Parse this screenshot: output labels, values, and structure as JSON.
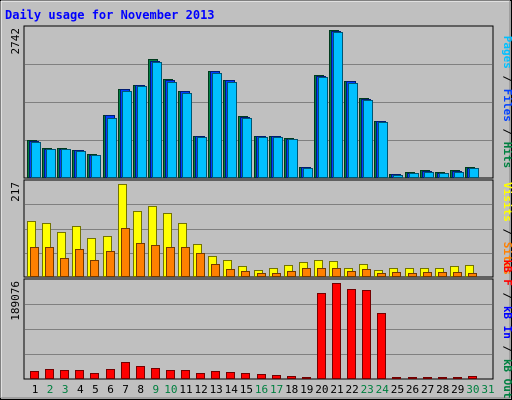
{
  "chart_data": [
    {
      "type": "bar",
      "title": "Daily usage for November 2013",
      "panel": "top",
      "ymax_label": "2742",
      "ylim": [
        0,
        2742
      ],
      "right_label_parts": [
        {
          "text": "Pages",
          "color": "#00C0FF"
        },
        {
          "text": " / ",
          "color": "#000000"
        },
        {
          "text": "Files",
          "color": "#0040FF"
        },
        {
          "text": " / ",
          "color": "#000000"
        },
        {
          "text": "Hits",
          "color": "#008040"
        }
      ],
      "categories": [
        "1",
        "2",
        "3",
        "4",
        "5",
        "6",
        "7",
        "8",
        "9",
        "10",
        "11",
        "12",
        "13",
        "14",
        "15",
        "16",
        "17",
        "18",
        "19",
        "20",
        "21",
        "22",
        "23",
        "24",
        "25",
        "26",
        "27",
        "28",
        "29",
        "30",
        "31"
      ],
      "series": [
        {
          "name": "Hits",
          "color": "#008040",
          "values": [
            700,
            550,
            550,
            520,
            440,
            1170,
            1650,
            1730,
            2210,
            1830,
            1620,
            780,
            1990,
            1820,
            1140,
            780,
            780,
            740,
            210,
            1900,
            2742,
            1800,
            1480,
            1060,
            70,
            110,
            140,
            110,
            140,
            200,
            null
          ]
        },
        {
          "name": "Files",
          "color": "#0040FF",
          "values": [
            690,
            540,
            540,
            510,
            430,
            1160,
            1640,
            1720,
            2170,
            1820,
            1610,
            770,
            1980,
            1810,
            1130,
            770,
            770,
            730,
            200,
            1890,
            2730,
            1790,
            1470,
            1050,
            65,
            100,
            130,
            100,
            130,
            190,
            null
          ]
        },
        {
          "name": "Pages",
          "color": "#00C0FF",
          "values": [
            660,
            530,
            530,
            500,
            420,
            1120,
            1620,
            1700,
            2140,
            1770,
            1580,
            760,
            1950,
            1780,
            1120,
            760,
            760,
            720,
            180,
            1880,
            2700,
            1760,
            1440,
            1030,
            60,
            90,
            120,
            90,
            120,
            180,
            null
          ]
        }
      ]
    },
    {
      "type": "bar",
      "panel": "middle",
      "ymax_label": "217",
      "ylim": [
        0,
        217
      ],
      "right_label_parts": [
        {
          "text": "Visits",
          "color": "#FFFF00"
        },
        {
          "text": " / ",
          "color": "#000000"
        },
        {
          "text": "Sites",
          "color": "#FF8000"
        }
      ],
      "series": [
        {
          "name": "Visits",
          "color": "#FFFF00",
          "values": [
            130,
            125,
            105,
            120,
            90,
            95,
            217,
            155,
            165,
            150,
            125,
            78,
            48,
            40,
            25,
            17,
            20,
            28,
            35,
            40,
            38,
            20,
            30,
            17,
            22,
            20,
            22,
            22,
            25,
            28,
            null
          ]
        },
        {
          "name": "Sites",
          "color": "#FF8000",
          "values": [
            70,
            70,
            45,
            65,
            40,
            60,
            115,
            80,
            75,
            70,
            70,
            55,
            30,
            18,
            15,
            10,
            10,
            15,
            20,
            20,
            20,
            15,
            18,
            10,
            12,
            10,
            12,
            12,
            12,
            10,
            null
          ]
        }
      ]
    },
    {
      "type": "bar",
      "panel": "bottom",
      "ymax_label": "189076",
      "ylim": [
        0,
        189076
      ],
      "right_label_parts": [
        {
          "text": "kB F",
          "color": "#FF0000"
        },
        {
          "text": " / ",
          "color": "#000000"
        },
        {
          "text": "kB In",
          "color": "#0000FF"
        },
        {
          "text": " / ",
          "color": "#000000"
        },
        {
          "text": "kB Out",
          "color": "#008040"
        }
      ],
      "series": [
        {
          "name": "kB F",
          "color": "#FF0000",
          "values": [
            16500,
            19000,
            18000,
            17000,
            11000,
            20000,
            33000,
            25000,
            22000,
            18000,
            18000,
            11000,
            16000,
            14000,
            11000,
            9000,
            8000,
            6000,
            4000,
            170000,
            189076,
            178000,
            176000,
            130000,
            3000,
            3000,
            3000,
            3000,
            3000,
            6500,
            null
          ]
        }
      ]
    }
  ],
  "x_axis": {
    "labels": [
      "1",
      "2",
      "3",
      "4",
      "5",
      "6",
      "7",
      "8",
      "9",
      "10",
      "11",
      "12",
      "13",
      "14",
      "15",
      "16",
      "17",
      "18",
      "19",
      "20",
      "21",
      "22",
      "23",
      "24",
      "25",
      "26",
      "27",
      "28",
      "29",
      "30",
      "31"
    ],
    "weekend_days": [
      "2",
      "3",
      "9",
      "10",
      "16",
      "17",
      "23",
      "24",
      "30",
      "31"
    ],
    "weekday_color": "#000000",
    "weekend_color": "#008040"
  }
}
